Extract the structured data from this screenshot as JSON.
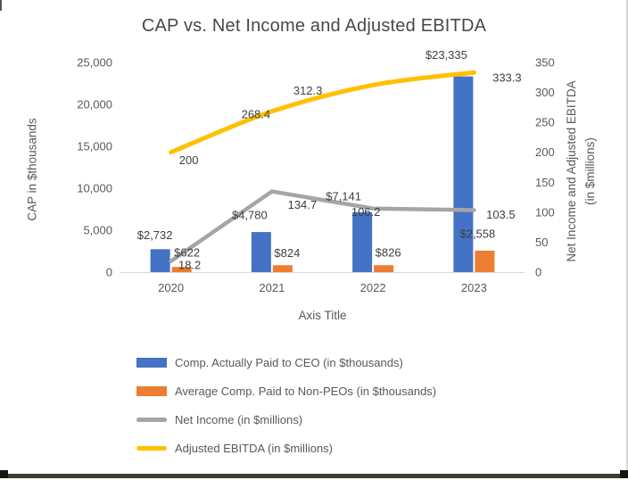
{
  "chart_data": {
    "type": "combo",
    "title": "CAP vs. Net Income and Adjusted EBITDA",
    "xlabel": "Axis Title",
    "categories": [
      "2020",
      "2021",
      "2022",
      "2023"
    ],
    "grid": false,
    "legend_position": "bottom",
    "left_axis": {
      "label": "CAP in $thousands",
      "min": 0,
      "max": 25000,
      "step": 5000,
      "ticks": [
        "0",
        "5,000",
        "10,000",
        "15,000",
        "20,000",
        "25,000"
      ]
    },
    "right_axis": {
      "label": "Net Income and Adjusted EBITDA (in $millions)",
      "label_lines": [
        "Net Income and Adjusted EBITDA",
        "(in $millions)"
      ],
      "min": 0,
      "max": 350,
      "step": 50,
      "ticks": [
        "0",
        "50",
        "100",
        "150",
        "200",
        "250",
        "300",
        "350"
      ]
    },
    "series": [
      {
        "name": "Comp. Actually Paid to CEO (in $thousands)",
        "type": "bar",
        "axis": "left",
        "color": "#4472C4",
        "values": [
          2732,
          4780,
          7141,
          23335
        ],
        "labels": [
          "$2,732",
          "$4,780",
          "$7,141",
          "$23,335"
        ]
      },
      {
        "name": "Average Comp. Paid to Non-PEOs (in $thousands)",
        "type": "bar",
        "axis": "left",
        "color": "#ED7D31",
        "values": [
          622,
          824,
          826,
          2558
        ],
        "labels": [
          "$622",
          "$824",
          "$826",
          "$2,558"
        ]
      },
      {
        "name": "Net Income (in $millions)",
        "type": "line",
        "axis": "right",
        "color": "#A5A5A5",
        "smooth": false,
        "values": [
          18.2,
          134.7,
          106.2,
          103.5
        ],
        "labels": [
          "18.2",
          "134.7",
          "106.2",
          "103.5"
        ]
      },
      {
        "name": "Adjusted EBITDA (in $millions)",
        "type": "line",
        "axis": "right",
        "color": "#FFC000",
        "smooth": true,
        "values": [
          200,
          268.4,
          312.3,
          333.3
        ],
        "labels": [
          "200",
          "268.4",
          "312.3",
          "333.3"
        ]
      }
    ]
  }
}
